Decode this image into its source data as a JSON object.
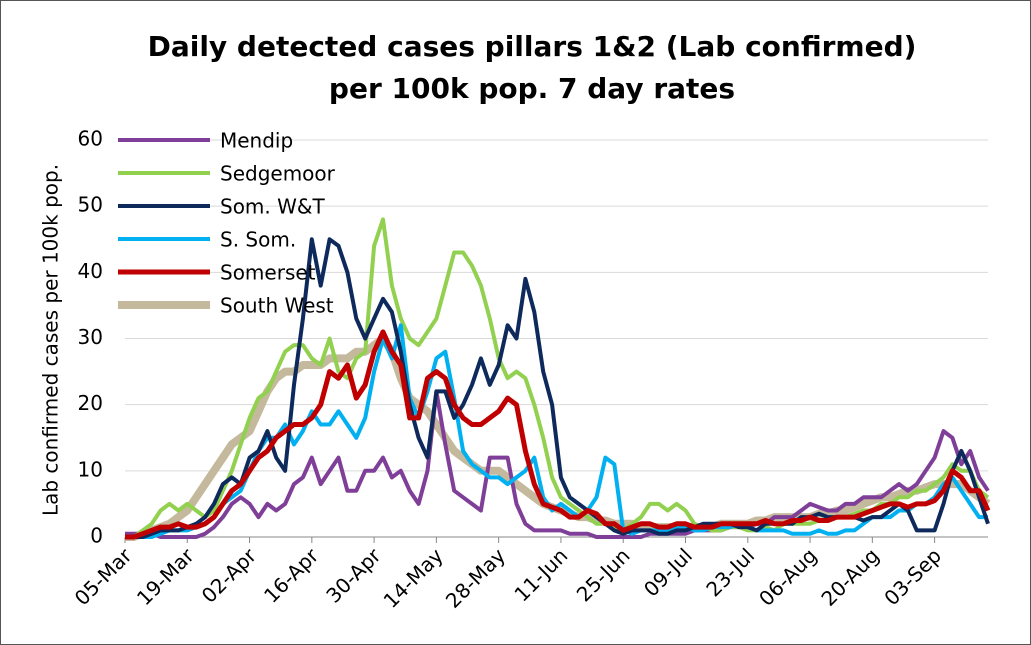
{
  "chart_data": {
    "type": "line",
    "title": [
      "Daily detected cases pillars 1&2 (Lab confirmed)",
      "per 100k pop. 7 day rates"
    ],
    "y_label": "Lab confirmed cases per 100k pop.",
    "legend": "upper left",
    "grid": true,
    "ylim": [
      0,
      60
    ],
    "yticks": [
      0,
      10,
      20,
      30,
      40,
      50,
      60
    ],
    "categories": [
      "05-Mar",
      null,
      null,
      null,
      null,
      null,
      null,
      "19-Mar",
      null,
      null,
      null,
      null,
      null,
      null,
      "02-Apr",
      null,
      null,
      null,
      null,
      null,
      null,
      "16-Apr",
      null,
      null,
      null,
      null,
      null,
      null,
      "30-Apr",
      null,
      null,
      null,
      null,
      null,
      null,
      "14-May",
      null,
      null,
      null,
      null,
      null,
      null,
      "28-May",
      null,
      null,
      null,
      null,
      null,
      null,
      "11-Jun",
      null,
      null,
      null,
      null,
      null,
      null,
      "25-Jun",
      null,
      null,
      null,
      null,
      null,
      null,
      "09-Jul",
      null,
      null,
      null,
      null,
      null,
      null,
      "23-Jul",
      null,
      null,
      null,
      null,
      null,
      null,
      "06-Aug",
      null,
      null,
      null,
      null,
      null,
      null,
      "20-Aug",
      null,
      null,
      null,
      null,
      null,
      null,
      "03-Sep",
      null,
      null,
      null,
      null,
      null,
      null
    ],
    "series": [
      {
        "name": "Mendip",
        "color": "#7f3f98",
        "width": 4,
        "values": [
          0.5,
          0.5,
          0.5,
          0.5,
          0,
          0,
          0,
          0,
          0,
          0.5,
          1.5,
          3,
          5,
          6,
          5,
          3,
          5,
          4,
          5,
          8,
          9,
          12,
          8,
          10,
          12,
          7,
          7,
          10,
          10,
          12,
          9,
          10,
          7,
          5,
          10,
          22,
          14,
          7,
          6,
          5,
          4,
          12,
          12,
          12,
          5,
          2,
          1,
          1,
          1,
          1,
          0.5,
          0.5,
          0.5,
          0,
          0,
          0,
          0,
          0,
          0,
          0.5,
          0.5,
          0.5,
          0.5,
          0.5,
          1,
          1,
          1,
          1,
          1.5,
          1.5,
          1.5,
          2,
          2,
          3,
          3,
          3,
          4,
          5,
          4.5,
          4,
          4,
          5,
          5,
          6,
          6,
          6,
          7,
          8,
          7,
          8,
          10,
          12,
          16,
          15,
          11,
          13,
          9,
          7
        ]
      },
      {
        "name": "Sedgemoor",
        "color": "#92d050",
        "width": 4,
        "values": [
          0,
          0,
          1,
          2,
          4,
          5,
          4,
          5,
          4,
          3,
          4,
          7,
          10,
          14,
          18,
          21,
          22,
          25,
          28,
          29,
          29,
          27,
          26,
          30,
          25,
          24,
          27,
          28,
          44,
          48,
          38,
          33,
          30,
          29,
          31,
          33,
          38,
          43,
          43,
          41,
          38,
          33,
          27,
          24,
          25,
          24,
          20,
          15,
          9,
          6,
          5,
          4,
          3,
          2,
          2,
          1.5,
          1,
          2,
          3,
          5,
          5,
          4,
          5,
          4,
          2,
          1.5,
          1,
          1,
          1.5,
          1.5,
          1,
          1,
          1.5,
          1,
          2,
          2,
          2,
          2,
          2.5,
          2.5,
          3,
          3,
          3.5,
          4,
          4,
          5,
          5,
          6,
          6,
          7,
          7,
          8,
          9,
          11,
          10,
          10,
          7,
          6
        ]
      },
      {
        "name": "Som. W&T",
        "color": "#0e2a5c",
        "width": 4,
        "values": [
          0,
          0,
          0,
          0.5,
          1,
          1,
          1,
          1.5,
          2,
          3,
          5,
          8,
          9,
          8,
          12,
          13,
          16,
          12,
          10,
          23,
          33,
          45,
          38,
          45,
          44,
          40,
          33,
          30,
          33,
          36,
          34,
          28,
          20,
          15,
          12,
          22,
          22,
          18,
          20,
          23,
          27,
          23,
          26,
          32,
          30,
          39,
          34,
          25,
          20,
          9,
          6,
          5,
          4,
          3,
          2,
          1,
          0.5,
          1,
          1,
          1,
          0.5,
          0.5,
          1,
          1,
          1.5,
          2,
          2,
          2,
          2,
          1.5,
          1.5,
          1,
          2,
          2,
          2,
          2,
          3,
          3,
          3.5,
          3,
          3,
          3,
          3,
          2.5,
          3,
          3,
          4,
          5,
          4,
          1,
          1,
          1,
          5,
          10,
          13,
          10,
          6,
          2
        ]
      },
      {
        "name": "S. Som.",
        "color": "#00b0f0",
        "width": 4,
        "values": [
          0,
          0,
          0,
          0,
          0.5,
          1,
          1,
          1,
          1.5,
          2,
          3,
          5,
          6,
          7,
          10,
          13,
          15,
          15,
          17,
          14,
          16,
          19,
          17,
          17,
          19,
          17,
          15,
          18,
          25,
          30,
          27,
          32,
          21,
          18,
          22,
          27,
          28,
          21,
          13,
          11,
          10,
          9,
          9,
          8,
          9,
          10,
          12,
          6,
          4,
          5,
          4,
          3,
          4,
          6,
          12,
          11,
          1,
          0.5,
          1,
          1,
          1,
          1,
          1.5,
          1.5,
          1,
          1,
          1.5,
          1.5,
          1.5,
          2,
          1.5,
          1,
          1,
          1,
          1,
          0.5,
          0.5,
          0.5,
          1,
          0.5,
          0.5,
          1,
          1,
          2,
          3,
          3,
          3,
          4,
          4,
          5,
          5,
          6,
          8,
          9,
          7,
          5,
          3,
          3
        ]
      },
      {
        "name": "Somerset",
        "color": "#c00000",
        "width": 5,
        "values": [
          0,
          0,
          0.5,
          1,
          1.5,
          1.5,
          2,
          1.5,
          1.5,
          2,
          3,
          5,
          7,
          8,
          10,
          12,
          13,
          15,
          16,
          17,
          17,
          18,
          20,
          25,
          24,
          26,
          21,
          23,
          28,
          31,
          28,
          26,
          18,
          18,
          24,
          25,
          24,
          20,
          18,
          17,
          17,
          18,
          19,
          21,
          20,
          13,
          8,
          5,
          4.5,
          4,
          3,
          3,
          4,
          3.5,
          2,
          2,
          1,
          1.5,
          2,
          2,
          1.5,
          1.5,
          2,
          2,
          1.5,
          1.5,
          1.5,
          2,
          2,
          2,
          2,
          2,
          2.5,
          2,
          2,
          2.5,
          2.5,
          3,
          2.5,
          2.5,
          3,
          3,
          3,
          3.5,
          4,
          4.5,
          5,
          5,
          4.5,
          5,
          5,
          5.5,
          7,
          10,
          9,
          7,
          7,
          4
        ]
      },
      {
        "name": "South West",
        "color": "#c4b99c",
        "width": 8,
        "values": [
          0,
          0,
          0.5,
          1,
          1.5,
          2,
          3,
          4,
          6,
          8,
          10,
          12,
          14,
          15,
          16,
          19,
          22,
          24,
          25,
          25,
          26,
          26,
          26,
          27,
          27,
          27,
          28,
          28,
          29,
          30,
          28,
          24,
          21,
          20,
          19,
          17,
          15,
          13,
          12,
          11,
          10,
          10,
          10,
          9,
          8,
          7,
          6,
          5,
          4.5,
          4,
          3.5,
          3,
          3,
          2.5,
          2.5,
          2,
          2,
          2,
          1.5,
          1.5,
          1.5,
          1.5,
          1.5,
          1.5,
          1.5,
          1.5,
          1.5,
          2,
          2,
          2,
          2,
          2.5,
          2.5,
          3,
          3,
          3,
          3,
          3,
          3.5,
          3.5,
          4,
          4,
          4.5,
          5,
          5.5,
          6,
          6,
          6.5,
          7,
          7,
          7.5,
          8,
          8,
          8,
          8,
          7,
          6,
          5
        ]
      }
    ]
  }
}
